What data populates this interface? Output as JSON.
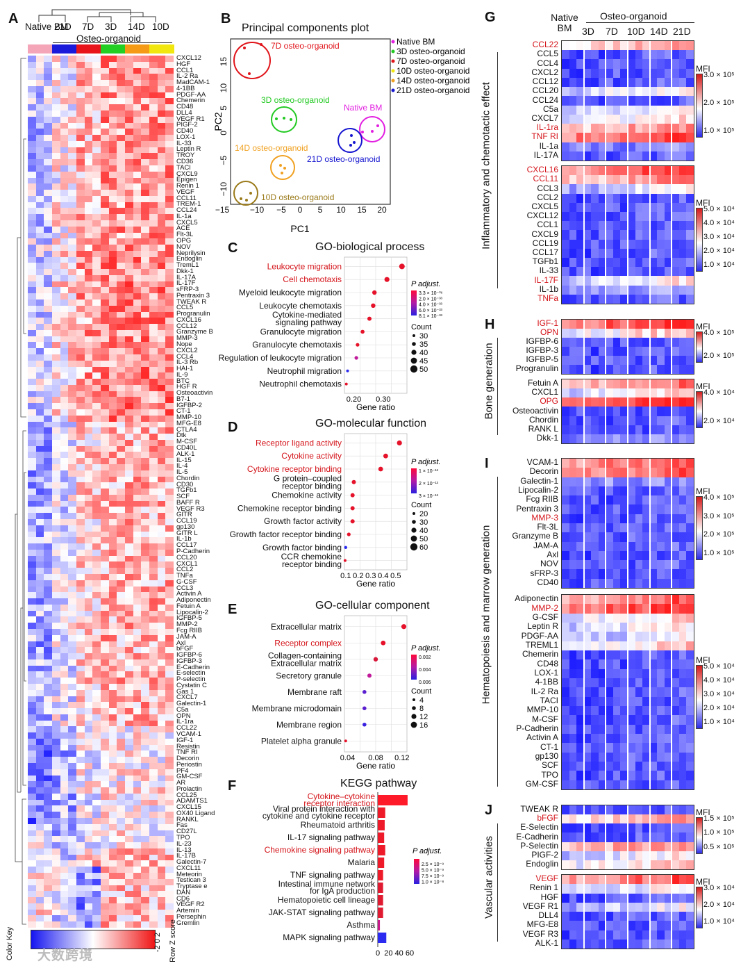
{
  "watermark": "大数跨境",
  "panelA": {
    "letter": "A",
    "col_headers": [
      "Native BM",
      "21D",
      "7D",
      "3D",
      "14D",
      "10D"
    ],
    "group_label": "Osteo-organoid",
    "color_key_label": "Color Key",
    "color_key_ticks": "-2 0 2",
    "row_z_label": "Row Z score",
    "group_colors": [
      "#f4a6b8",
      "#1a1adb",
      "#e8141a",
      "#24cf24",
      "#f49a14",
      "#f2e60f"
    ],
    "genes": [
      "CXCL12",
      "HGF",
      "CCL1",
      "IL-2 Ra",
      "MadCAM-1",
      "4-1BB",
      "PDGF-AA",
      "Chemerin",
      "CD48",
      "DLL4",
      "VEGF R1",
      "PIGF-2",
      "CD40",
      "LOX-1",
      "IL-33",
      "Leptin R",
      "TROY",
      "CD36",
      "TACI",
      "CXCL9",
      "Epigen",
      "Renin 1",
      "VEGF",
      "CCL11",
      "TREM-1",
      "CCL24",
      "IL-1a",
      "CXCL5",
      "ACE",
      "Flt-3L",
      "OPG",
      "NOV",
      "Neprilysin",
      "Endoglin",
      "TremL1",
      "Dkk-1",
      "IL-17A",
      "IL-17F",
      "sFRP-3",
      "Pentraxin 3",
      "TWEAK R",
      "CCL5",
      "Progranulin",
      "CXCL16",
      "CCL12",
      "Granzyme B",
      "MMP-3",
      "Nope",
      "CXCL2",
      "CCL4",
      "IL-3 Rb",
      "HAI-1",
      "IL-9",
      "BTC",
      "HGF R",
      "Osteoactivin",
      "B7-1",
      "IGFBP-2",
      "CT-1",
      "MMP-10",
      "MFG-E8",
      "CTLA4",
      "Dtk",
      "M-CSF",
      "CD40L",
      "ALK-1",
      "IL-15",
      "IL-4",
      "IL-5",
      "Chordin",
      "CD30",
      "TGFb1",
      "SCF",
      "BAFF R",
      "VEGF R3",
      "GITR",
      "CCL19",
      "gp130",
      "GITR L",
      "IL-1b",
      "CCL17",
      "P-Cadherin",
      "CCL20",
      "CXCL1",
      "CCL2",
      "TNFa",
      "G-CSF",
      "CCL3",
      "Activin A",
      "Adiponectin",
      "Fetuin A",
      "Lipocalin-2",
      "IGFBP-5",
      "MMP-2",
      "Fcg RIIB",
      "JAM-A",
      "Axl",
      "bFGF",
      "IGFBP-6",
      "IGFBP-3",
      "E-Cadherin",
      "E-selectin",
      "P-selectin",
      "Cystatin C",
      "Gas 1",
      "CXCL7",
      "Galectin-1",
      "C5a",
      "OPN",
      "IL-1ra",
      "CCL22",
      "VCAM-1",
      "IGF-1",
      "Resistin",
      "TNF RI",
      "Decorin",
      "Periostin",
      "PF4",
      "GM-CSF",
      "AR",
      "Prolactin",
      "CCL25",
      "ADAMTS1",
      "CXCL15",
      "OX40 Ligand",
      "RANKL",
      "Fas",
      "CD27L",
      "TPO",
      "IL-23",
      "IL-13",
      "IL-17B",
      "Galectin-7",
      "CXCL11",
      "Meteorin",
      "Testican 3",
      "Tryptase e",
      "DAN",
      "CD6",
      "VEGF R2",
      "Artemin",
      "Persephin",
      "Gremlin"
    ]
  },
  "panelB": {
    "letter": "B",
    "title": "Principal components plot",
    "xlabel": "PC1",
    "ylabel": "PC2",
    "legend": [
      "Native BM",
      "3D osteo-organoid",
      "7D osteo-organoid",
      "10D osteo-organoid",
      "14D osteo-organoid",
      "21D osteo-organoid"
    ],
    "annotations": [
      "7D osteo-organoid",
      "3D osteo-organoid",
      "Native BM",
      "14D osteo-organoid",
      "21D osteo-organoid",
      "10D osteo-organoid"
    ]
  },
  "panelC": {
    "letter": "C",
    "title": "GO-biological process",
    "terms": [
      "Leukocyte migration",
      "Cell chemotaxis",
      "Myeloid leukocyte migration",
      "Leukocyte chemotaxis",
      "Cytokine-mediated signaling pathway",
      "Granulocyte migration",
      "Granulocyte chemotaxis",
      "Regulation of leukocyte migration",
      "Neutrophil migration",
      "Neutrophil chemotaxis"
    ],
    "xlabel": "Gene ratio",
    "padj_label": "P adjust.",
    "padj_ticks": [
      "3.3 × 10⁻³⁶",
      "2.0 × 10⁻³³",
      "4.0 × 10⁻³³",
      "6.0 × 10⁻³³",
      "8.1 × 10⁻³³"
    ],
    "count_label": "Count",
    "count_ticks": [
      "30",
      "35",
      "40",
      "45",
      "50"
    ]
  },
  "panelD": {
    "letter": "D",
    "title": "GO-molecular function",
    "terms": [
      "Receptor ligand activity",
      "Cytokine activity",
      "Cytokine receptor binding",
      "G protein–coupled receptor binding",
      "Chemokine activity",
      "Chemokine receptor binding",
      "Growth factor activity",
      "Growth factor receptor binding",
      "Growth factor binding",
      "CCR chemokine receptor binding"
    ],
    "xlabel": "Gene ratio",
    "padj_label": "P adjust.",
    "padj_ticks": [
      "1 × 10⁻¹³",
      "2 × 10⁻¹³",
      "3 × 10⁻¹³"
    ],
    "count_label": "Count",
    "count_ticks": [
      "20",
      "30",
      "40",
      "50",
      "60"
    ]
  },
  "panelE": {
    "letter": "E",
    "title": "GO-cellular component",
    "terms": [
      "Extracellular matrix",
      "Receptor complex",
      "Collagen-containing Extracellular matrix",
      "Secretory granule",
      "Membrane raft",
      "Membrane microdomain",
      "Membrane region",
      "Platelet alpha granule"
    ],
    "xlabel": "Gene ratio",
    "padj_label": "P adjust.",
    "padj_ticks": [
      "0.002",
      "0.004",
      "0.006"
    ],
    "count_label": "Count",
    "count_ticks": [
      "4",
      "8",
      "12",
      "16"
    ]
  },
  "panelF": {
    "letter": "F",
    "title": "KEGG pathway",
    "terms": [
      "Cytokine–cytokine receptor interaction",
      "Viral protein interaction with cytokine and cytokine receptor",
      "Rheumatoid arthritis",
      "IL-17 signaling pathway",
      "Chemokine signaling pathway",
      "Malaria",
      "TNF signaling pathway",
      "Intestinal immune network for IgA production",
      "Hematopoietic cell lineage",
      "JAK-STAT signaling pathway",
      "Asthma",
      "MAPK signaling pathway"
    ],
    "padj_label": "P adjust.",
    "padj_ticks": [
      "2.5 × 10⁻⁹",
      "5.0 × 10⁻⁹",
      "7.5 × 10⁻⁹",
      "1.0 × 10⁻⁸"
    ]
  },
  "panelG": {
    "letter": "G",
    "col_headers": [
      "Native BM",
      "3D",
      "7D",
      "10D",
      "14D",
      "21D"
    ],
    "group_label": "Osteo-organoid",
    "side_label": "Inflammatory and chemotactic effect",
    "mfi_label": "MFI",
    "block1_genes": [
      "CCL22",
      "CCL5",
      "CCL4",
      "CXCL2",
      "CCL12",
      "CCL20",
      "CCL24",
      "C5a",
      "CXCL7",
      "IL-1ra",
      "TNF RI",
      "IL-1a",
      "IL-17A"
    ],
    "block1_ticks": [
      "3.0 × 10⁵",
      "2.0 × 10⁵",
      "1.0 × 10⁵"
    ],
    "block2_genes": [
      "CXCL16",
      "CCL11",
      "CCL3",
      "CCL2",
      "CXCL5",
      "CXCL12",
      "CCL1",
      "CXCL9",
      "CCL19",
      "CCL17",
      "TGFb1",
      "IL-33",
      "IL-17F",
      "IL-1b",
      "TNFa"
    ],
    "block2_ticks": [
      "5.0 × 10⁴",
      "4.0 × 10⁴",
      "3.0 × 10⁴",
      "2.0 × 10⁴",
      "1.0 × 10⁴"
    ]
  },
  "panelH": {
    "letter": "H",
    "side_label": "Bone generation",
    "mfi_label": "MFI",
    "block1_genes": [
      "IGF-1",
      "OPN",
      "IGFBP-6",
      "IGFBP-3",
      "IGFBP-5",
      "Progranulin"
    ],
    "block1_ticks": [
      "4.0 × 10⁵",
      "2.0 × 10⁵"
    ],
    "block2_genes": [
      "Fetuin A",
      "CXCL1",
      "OPG",
      "Osteoactivin",
      "Chordin",
      "RANK L",
      "Dkk-1"
    ],
    "block2_ticks": [
      "4.0 × 10⁴",
      "2.0 × 10⁴"
    ]
  },
  "panelI": {
    "letter": "I",
    "side_label": "Hematopoiesis and marrow generation",
    "mfi_label": "MFI",
    "block1_genes": [
      "VCAM-1",
      "Decorin",
      "Galectin-1",
      "Lipocalin-2",
      "Fcg RIIB",
      "Pentraxin 3",
      "MMP-3",
      "Flt-3L",
      "Granzyme B",
      "JAM-A",
      "Axl",
      "NOV",
      "sFRP-3",
      "CD40"
    ],
    "block1_ticks": [
      "4.0 × 10⁵",
      "3.0 × 10⁵",
      "2.0 × 10⁵",
      "1.0 × 10⁵"
    ],
    "block2_genes": [
      "Adiponectin",
      "MMP-2",
      "G-CSF",
      "Leptin R",
      "PDGF-AA",
      "TREML1",
      "Chemerin",
      "CD48",
      "LOX-1",
      "4-1BB",
      "IL-2 Ra",
      "TACI",
      "MMP-10",
      "M-CSF",
      "P-Cadherin",
      "Activin A",
      "CT-1",
      "gp130",
      "SCF",
      "TPO",
      "GM-CSF"
    ],
    "block2_ticks": [
      "5.0 × 10⁴",
      "4.0 × 10⁴",
      "3.0 × 10⁴",
      "2.0 × 10⁴",
      "1.0 × 10⁴"
    ]
  },
  "panelJ": {
    "letter": "J",
    "side_label": "Vascular activities",
    "mfi_label": "MFI",
    "block1_genes": [
      "TWEAK R",
      "bFGF",
      "E-Selectin",
      "E-Cadherin",
      "P-Selectin",
      "PIGF-2",
      "Endoglin"
    ],
    "block1_ticks": [
      "1.5 × 10⁵",
      "1.0 × 10⁵",
      "0.5 × 10⁵"
    ],
    "block2_genes": [
      "VEGF",
      "Renin 1",
      "HGF",
      "VEGF R1",
      "DLL4",
      "MFG-E8",
      "VEGF R3",
      "ALK-1"
    ],
    "block2_ticks": [
      "3.0 × 10⁴",
      "2.0 × 10⁴",
      "1.0 × 10⁴"
    ]
  }
}
